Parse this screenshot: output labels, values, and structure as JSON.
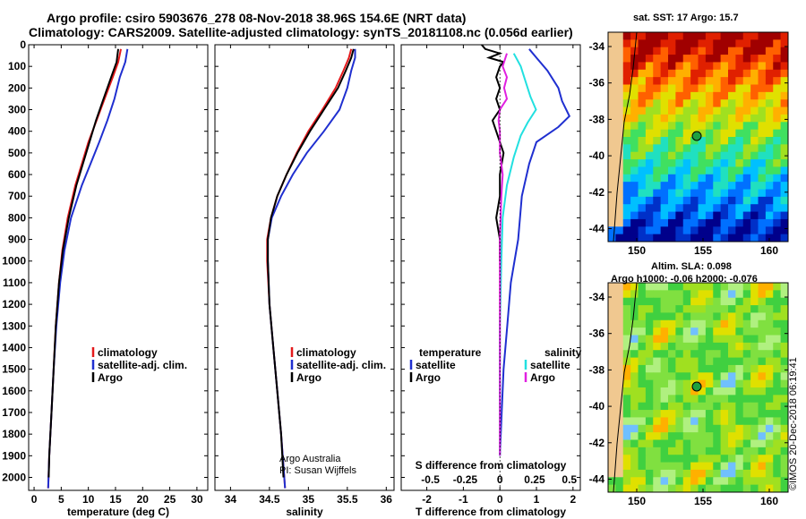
{
  "titles": {
    "line1": "Argo profile: csiro 5903676_278 08-Nov-2018 38.96S 154.6E (NRT data)",
    "line2": "Climatology: CARS2009. Satellite-adjusted climatology: synTS_20181108.nc (0.056d earlier)"
  },
  "colors": {
    "climatology": "#e41a1c",
    "satellite": "#1f2fd0",
    "argo": "#000000",
    "sal_satellite": "#22e0e0",
    "sal_argo": "#e020e0"
  },
  "depth_axis": {
    "ylim": [
      0,
      2060
    ],
    "ticks": [
      "0",
      "100",
      "200",
      "300",
      "400",
      "500",
      "600",
      "700",
      "800",
      "900",
      "1000",
      "1100",
      "1200",
      "1300",
      "1400",
      "1500",
      "1600",
      "1700",
      "1800",
      "1900",
      "2000"
    ]
  },
  "chart_data": [
    {
      "type": "line",
      "id": "temperature",
      "xlabel": "temperature (deg C)",
      "xlim": [
        -1,
        32
      ],
      "xticks": [
        "0",
        "5",
        "10",
        "15",
        "20",
        "25",
        "30"
      ],
      "legend": [
        "climatology",
        "satellite-adj. clim.",
        "Argo"
      ],
      "series": [
        {
          "name": "climatology",
          "depth": [
            20,
            80,
            150,
            250,
            350,
            450,
            550,
            650,
            800,
            950,
            1100,
            1300,
            1500,
            1700,
            1900,
            2050
          ],
          "values": [
            16.0,
            15.5,
            14.5,
            13.0,
            11.5,
            10.0,
            8.8,
            7.6,
            6.2,
            5.2,
            4.6,
            4.0,
            3.6,
            3.2,
            2.8,
            2.6
          ]
        },
        {
          "name": "satellite-adj. clim.",
          "depth": [
            20,
            80,
            150,
            250,
            350,
            450,
            550,
            650,
            800,
            950,
            1100,
            1300,
            1500,
            1700,
            1900,
            2050
          ],
          "values": [
            17.2,
            16.8,
            15.8,
            14.8,
            13.5,
            12.0,
            10.4,
            8.8,
            6.8,
            5.6,
            4.8,
            4.1,
            3.6,
            3.2,
            2.8,
            2.6
          ]
        },
        {
          "name": "Argo",
          "depth": [
            20,
            80,
            150,
            250,
            350,
            450,
            550,
            650,
            800,
            950,
            1100,
            1300,
            1500,
            1700,
            1900,
            2000
          ],
          "values": [
            15.5,
            15.2,
            14.2,
            12.8,
            11.4,
            10.2,
            9.0,
            7.8,
            6.4,
            5.3,
            4.6,
            4.0,
            3.6,
            3.2,
            2.8,
            2.7
          ]
        }
      ]
    },
    {
      "type": "line",
      "id": "salinity",
      "xlabel": "salinity",
      "xlim": [
        33.8,
        36.1
      ],
      "xticks": [
        "34",
        "34.5",
        "35",
        "35.5",
        "36"
      ],
      "legend": [
        "climatology",
        "satellite-adj. clim.",
        "Argo"
      ],
      "annotations": [
        "Argo Australia",
        "PI: Susan Wijffels"
      ],
      "series": [
        {
          "name": "climatology",
          "depth": [
            20,
            60,
            120,
            200,
            300,
            400,
            500,
            600,
            700,
            800,
            900,
            1000,
            1200,
            1400,
            1600,
            1800,
            2050
          ],
          "values": [
            35.55,
            35.52,
            35.45,
            35.35,
            35.18,
            35.0,
            34.85,
            34.72,
            34.6,
            34.52,
            34.47,
            34.47,
            34.5,
            34.55,
            34.6,
            34.65,
            34.7
          ]
        },
        {
          "name": "satellite-adj. clim.",
          "depth": [
            20,
            60,
            120,
            200,
            300,
            400,
            500,
            600,
            700,
            800,
            900,
            1000,
            1200,
            1400,
            1600,
            1800,
            2050
          ],
          "values": [
            35.6,
            35.6,
            35.55,
            35.5,
            35.4,
            35.2,
            34.98,
            34.8,
            34.65,
            34.53,
            34.48,
            34.48,
            34.5,
            34.55,
            34.6,
            34.65,
            34.7
          ]
        },
        {
          "name": "Argo",
          "depth": [
            20,
            60,
            120,
            200,
            300,
            400,
            500,
            600,
            700,
            800,
            900,
            1000,
            1200,
            1400,
            1600,
            1800,
            2000
          ],
          "values": [
            35.58,
            35.55,
            35.48,
            35.38,
            35.2,
            35.02,
            34.86,
            34.72,
            34.6,
            34.52,
            34.48,
            34.48,
            34.5,
            34.55,
            34.6,
            34.65,
            34.68
          ]
        }
      ]
    },
    {
      "type": "line",
      "id": "difference",
      "xlabel": "T difference from climatology",
      "xlim": [
        -2.7,
        2.2
      ],
      "xticks": [
        "-2",
        "-1",
        "0",
        "1",
        "2"
      ],
      "secondary_xlabel": "S difference from climatology",
      "secondary_xticks": [
        "-0.5",
        "-0.25",
        "0",
        "0.25",
        "0.5"
      ],
      "legend_temperature": [
        "temperature",
        "satellite",
        "Argo"
      ],
      "legend_salinity": [
        "salinity",
        "satellite",
        "Argo"
      ],
      "series": [
        {
          "name": "T satellite",
          "depth": [
            20,
            60,
            120,
            200,
            260,
            330,
            380,
            450,
            550,
            700,
            900,
            1100,
            1300,
            1500,
            1700,
            1900
          ],
          "values": [
            0.8,
            1.0,
            1.3,
            1.6,
            1.7,
            1.9,
            1.6,
            1.0,
            0.8,
            0.6,
            0.5,
            0.3,
            0.2,
            0.1,
            0.05,
            0.0
          ]
        },
        {
          "name": "T Argo",
          "depth": [
            0,
            20,
            40,
            60,
            80,
            100,
            150,
            200,
            250,
            300,
            350,
            400,
            450,
            500,
            600,
            700,
            800,
            900,
            1000
          ],
          "values": [
            -0.5,
            -0.4,
            0.0,
            -0.3,
            0.1,
            0.0,
            -0.1,
            0.0,
            -0.1,
            0.0,
            -0.2,
            -0.1,
            0.0,
            0.1,
            0.0,
            0.0,
            -0.1,
            0.0,
            0.0
          ]
        },
        {
          "name": "S satellite",
          "depth": [
            40,
            100,
            160,
            240,
            300,
            360,
            420,
            520,
            650,
            800,
            1000,
            1300,
            1600,
            1900
          ],
          "values": [
            0.1,
            0.15,
            0.18,
            0.22,
            0.26,
            0.2,
            0.15,
            0.1,
            0.05,
            0.02,
            0.01,
            0.0,
            0.0,
            0.0
          ]
        },
        {
          "name": "S Argo",
          "depth": [
            40,
            100,
            150,
            200,
            250,
            300,
            350,
            400,
            500,
            600,
            700,
            900,
            1200,
            1500,
            1900
          ],
          "values": [
            0.05,
            0.02,
            0.05,
            0.03,
            0.05,
            0.0,
            -0.01,
            0.0,
            0.0,
            0.02,
            0.01,
            0.0,
            0.0,
            0.0,
            0.0
          ]
        }
      ]
    }
  ],
  "maps": [
    {
      "title": "sat. SST: 17 Argo: 15.7",
      "lat_ticks": [
        "-34",
        "-36",
        "-38",
        "-40",
        "-42",
        "-44"
      ],
      "lon_ticks": [
        "150",
        "155",
        "160"
      ]
    },
    {
      "title_line1": "Altim. SLA: 0.098",
      "title_line2": "Argo h1000: -0.06 h2000: -0.076",
      "lat_ticks": [
        "-34",
        "-36",
        "-38",
        "-40",
        "-42",
        "-44"
      ],
      "lon_ticks": [
        "150",
        "155",
        "160"
      ]
    }
  ],
  "credit": "©IMOS 20-Dec-2018 06:19:41"
}
